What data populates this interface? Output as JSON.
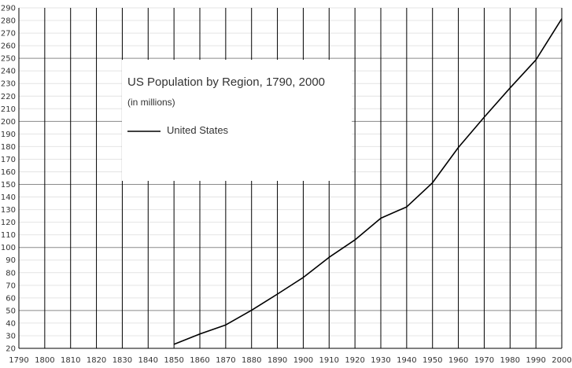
{
  "chart_data": {
    "type": "line",
    "title": "US Population by Region, 1790, 2000",
    "subtitle": "(in millions)",
    "xlabel": "",
    "ylabel": "",
    "xlim": [
      1790,
      2000
    ],
    "ylim": [
      20,
      290
    ],
    "x_ticks": [
      1790,
      1800,
      1810,
      1820,
      1830,
      1840,
      1850,
      1860,
      1870,
      1880,
      1890,
      1900,
      1910,
      1920,
      1930,
      1940,
      1950,
      1960,
      1970,
      1980,
      1990,
      2000
    ],
    "y_ticks": [
      20,
      30,
      40,
      50,
      60,
      70,
      80,
      90,
      100,
      110,
      120,
      130,
      140,
      150,
      160,
      170,
      180,
      190,
      200,
      210,
      220,
      230,
      240,
      250,
      260,
      270,
      280,
      290
    ],
    "grid": true,
    "legend": {
      "placement": "top-left",
      "entries": [
        "United States"
      ]
    },
    "series": [
      {
        "name": "United States",
        "color": "#000000",
        "x": [
          1850,
          1860,
          1870,
          1880,
          1890,
          1900,
          1910,
          1920,
          1930,
          1940,
          1950,
          1960,
          1970,
          1980,
          1990,
          2000
        ],
        "y": [
          23.2,
          31.4,
          38.6,
          50.2,
          63.0,
          76.2,
          92.2,
          106.0,
          123.2,
          132.2,
          151.3,
          179.3,
          203.3,
          226.5,
          248.7,
          281.4
        ]
      }
    ]
  }
}
